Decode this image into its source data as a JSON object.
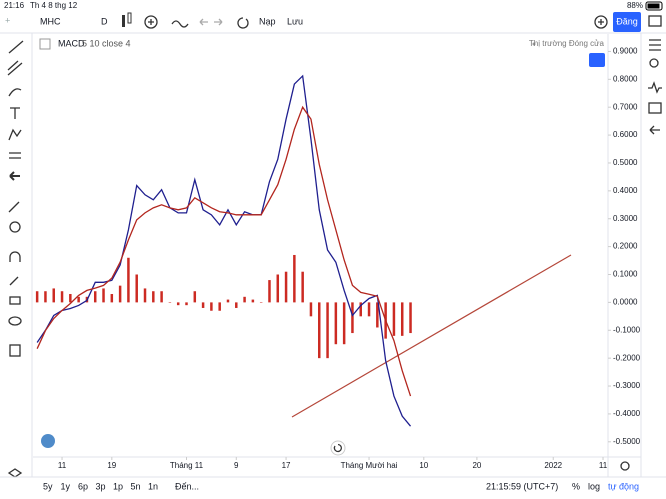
{
  "status_bar": {
    "time": "21:16",
    "date": "Th 4 8 thg 12",
    "battery": "88%"
  },
  "toolbar": {
    "symbol": "MHC",
    "interval": "D",
    "deposit": "Nạp",
    "save": "Lưu",
    "register": "Đăng"
  },
  "chart_data": {
    "type": "line",
    "indicator": {
      "name": "MACD",
      "params": "5 10 close 4"
    },
    "market_status": "Thị trường Đóng cửa",
    "x": [
      0,
      1,
      2,
      3,
      4,
      5,
      6,
      7,
      8,
      9,
      10,
      11,
      12,
      13,
      14,
      15,
      16,
      17,
      18,
      19,
      20,
      21,
      22,
      23,
      24,
      25,
      26,
      27,
      28,
      29,
      30,
      31,
      32,
      33,
      34,
      35,
      36,
      37,
      38,
      39,
      40,
      41,
      42,
      43,
      44,
      45
    ],
    "series": [
      {
        "color": "#1f1f8f",
        "style": "line",
        "values": [
          -0.144,
          -0.1,
          -0.047,
          -0.029,
          -0.022,
          -0.011,
          0.007,
          0.072,
          0.072,
          0.079,
          0.134,
          0.26,
          0.419,
          0.386,
          0.368,
          0.404,
          0.339,
          0.321,
          0.321,
          0.44,
          0.332,
          0.314,
          0.278,
          0.332,
          0.278,
          0.325,
          0.314,
          0.314,
          0.433,
          0.513,
          0.657,
          0.783,
          0.812,
          0.585,
          0.332,
          0.188,
          0.144,
          0.043,
          -0.047,
          -0.011,
          0.014,
          0.025,
          -0.209,
          -0.336,
          -0.408,
          -0.444
        ]
      },
      {
        "color": "#b3261e",
        "style": "line",
        "values": [
          -0.166,
          -0.101,
          -0.058,
          -0.029,
          -0.004,
          0.025,
          0.043,
          0.051,
          0.061,
          0.087,
          0.144,
          0.224,
          0.296,
          0.321,
          0.339,
          0.35,
          0.339,
          0.332,
          0.339,
          0.375,
          0.357,
          0.339,
          0.325,
          0.321,
          0.314,
          0.314,
          0.314,
          0.314,
          0.368,
          0.422,
          0.513,
          0.621,
          0.7,
          0.657,
          0.495,
          0.368,
          0.26,
          0.152,
          0.061,
          0.036,
          0.029,
          0.022,
          -0.065,
          -0.137,
          -0.245,
          -0.336
        ]
      },
      {
        "color": "#cc2a22",
        "style": "bar",
        "values": [
          0.04,
          0.04,
          0.05,
          0.04,
          0.03,
          0.02,
          0.02,
          0.04,
          0.05,
          0.03,
          0.06,
          0.16,
          0.1,
          0.05,
          0.04,
          0.04,
          0.0,
          -0.01,
          -0.01,
          0.04,
          -0.02,
          -0.03,
          -0.03,
          0.01,
          -0.02,
          0.02,
          0.01,
          0.0,
          0.08,
          0.1,
          0.11,
          0.17,
          0.11,
          -0.05,
          -0.2,
          -0.2,
          -0.15,
          -0.15,
          -0.11,
          -0.05,
          -0.05,
          -0.09,
          -0.13,
          -0.12,
          -0.12,
          -0.11
        ]
      }
    ],
    "xlim": [
      -0.5,
      68.8
    ],
    "xticks": [
      {
        "value": 3,
        "label": "11"
      },
      {
        "value": 9,
        "label": "19"
      },
      {
        "value": 18,
        "label": "Tháng 11"
      },
      {
        "value": 24,
        "label": "9"
      },
      {
        "value": 30,
        "label": "17"
      },
      {
        "value": 40,
        "label": "Tháng Mười hai"
      },
      {
        "value": 46.6,
        "label": "10"
      },
      {
        "value": 53,
        "label": "20"
      },
      {
        "value": 62.2,
        "label": "2022"
      },
      {
        "value": 68.2,
        "label": "11"
      }
    ],
    "ylim": [
      -0.5545,
      0.9625
    ],
    "yticks": [
      {
        "value": 0.9,
        "label": "0.9000"
      },
      {
        "value": 0.8,
        "label": "0.8000"
      },
      {
        "value": 0.7,
        "label": "0.7000"
      },
      {
        "value": 0.6,
        "label": "0.6000"
      },
      {
        "value": 0.5,
        "label": "0.5000"
      },
      {
        "value": 0.4,
        "label": "0.4000"
      },
      {
        "value": 0.3,
        "label": "0.3000"
      },
      {
        "value": 0.2,
        "label": "0.2000"
      },
      {
        "value": 0.1,
        "label": "0.1000"
      },
      {
        "value": 0,
        "label": "0.0000"
      },
      {
        "value": -0.1,
        "label": "-0.1000"
      },
      {
        "value": -0.2,
        "label": "-0.2000"
      },
      {
        "value": -0.3,
        "label": "-0.3000"
      },
      {
        "value": -0.4,
        "label": "-0.4000"
      },
      {
        "value": -0.5,
        "label": "-0.5000"
      }
    ],
    "grid": false
  },
  "bottom_bar": {
    "ranges": [
      "5y",
      "1y",
      "6p",
      "3p",
      "1p",
      "5n",
      "1n"
    ],
    "go_to": "Đến...",
    "clock": "21:15:59 (UTC+7)",
    "percent": "%",
    "log": "log",
    "auto": "tự động"
  }
}
